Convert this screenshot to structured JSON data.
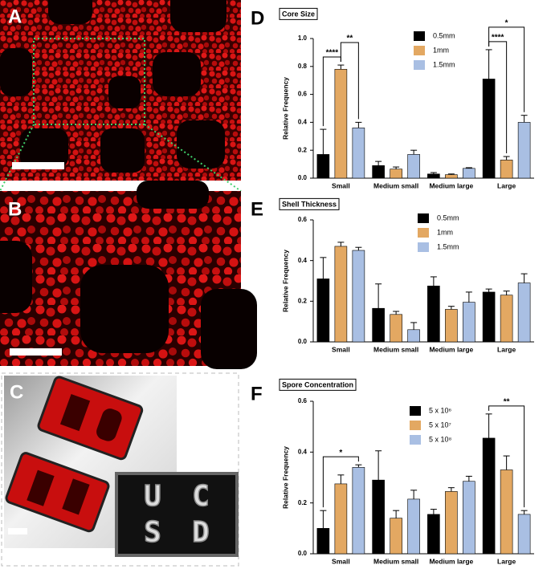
{
  "panel_labels": [
    "A",
    "B",
    "C",
    "D",
    "E",
    "F"
  ],
  "panel_c": {
    "inset_letters": [
      "U",
      "C",
      "S",
      "D"
    ]
  },
  "chart_data": [
    {
      "type": "bar",
      "title": "Core Size",
      "y_label": "Relative Frequency",
      "categories": [
        "Small",
        "Medium small",
        "Medium large",
        "Large"
      ],
      "ylim": [
        0,
        1
      ],
      "yticks": [
        {
          "value": 0,
          "label": "0.0"
        },
        0.2,
        0.4,
        0.6,
        0.8,
        {
          "value": 1,
          "label": "1.0"
        }
      ],
      "series": [
        {
          "name": "0.5mm",
          "color": "#000000",
          "values": [
            0.17,
            0.09,
            0.03,
            0.71
          ],
          "errors": [
            0.18,
            0.03,
            0.01,
            0.21
          ]
        },
        {
          "name": "1mm",
          "color": "#e3a862",
          "values": [
            0.78,
            0.065,
            0.025,
            0.13
          ],
          "errors": [
            0.03,
            0.015,
            0.005,
            0.025
          ]
        },
        {
          "name": "1.5mm",
          "color": "#a9bfe3",
          "values": [
            0.36,
            0.17,
            0.07,
            0.4
          ],
          "errors": [
            0.04,
            0.03,
            0.005,
            0.05
          ]
        }
      ],
      "annotations": [
        "****",
        "**",
        "****",
        "*"
      ]
    },
    {
      "type": "bar",
      "title": "Shell Thickness",
      "y_label": "Relative Frequency",
      "categories": [
        "Small",
        "Medium small",
        "Medium large",
        "Large"
      ],
      "ylim": [
        0,
        0.6
      ],
      "yticks": [
        {
          "value": 0,
          "label": "0.0"
        },
        0.2,
        0.4,
        0.6
      ],
      "series": [
        {
          "name": "0.5mm",
          "color": "#000000",
          "values": [
            0.31,
            0.165,
            0.275,
            0.245
          ],
          "errors": [
            0.105,
            0.12,
            0.045,
            0.015
          ]
        },
        {
          "name": "1mm",
          "color": "#e3a862",
          "values": [
            0.47,
            0.135,
            0.16,
            0.23
          ],
          "errors": [
            0.02,
            0.015,
            0.015,
            0.02
          ]
        },
        {
          "name": "1.5mm",
          "color": "#a9bfe3",
          "values": [
            0.45,
            0.06,
            0.195,
            0.29
          ],
          "errors": [
            0.015,
            0.035,
            0.05,
            0.045
          ]
        }
      ],
      "annotations": []
    },
    {
      "type": "bar",
      "title": "Spore Concentration",
      "y_label": "Relative Frequency",
      "categories": [
        "Small",
        "Medium small",
        "Medium large",
        "Large"
      ],
      "ylim": [
        0,
        0.6
      ],
      "yticks": [
        {
          "value": 0,
          "label": "0.0"
        },
        0.2,
        0.4,
        0.6
      ],
      "series": [
        {
          "name": "5 x 10⁶",
          "color": "#000000",
          "values": [
            0.1,
            0.29,
            0.155,
            0.455
          ],
          "errors": [
            0.07,
            0.115,
            0.02,
            0.095
          ]
        },
        {
          "name": "5 x 10⁷",
          "color": "#e3a862",
          "values": [
            0.275,
            0.14,
            0.245,
            0.33
          ],
          "errors": [
            0.035,
            0.03,
            0.015,
            0.055
          ]
        },
        {
          "name": "5 x 10⁸",
          "color": "#a9bfe3",
          "values": [
            0.34,
            0.215,
            0.285,
            0.155
          ],
          "errors": [
            0.01,
            0.035,
            0.02,
            0.015
          ]
        }
      ],
      "annotations": [
        "*",
        "**"
      ]
    }
  ]
}
